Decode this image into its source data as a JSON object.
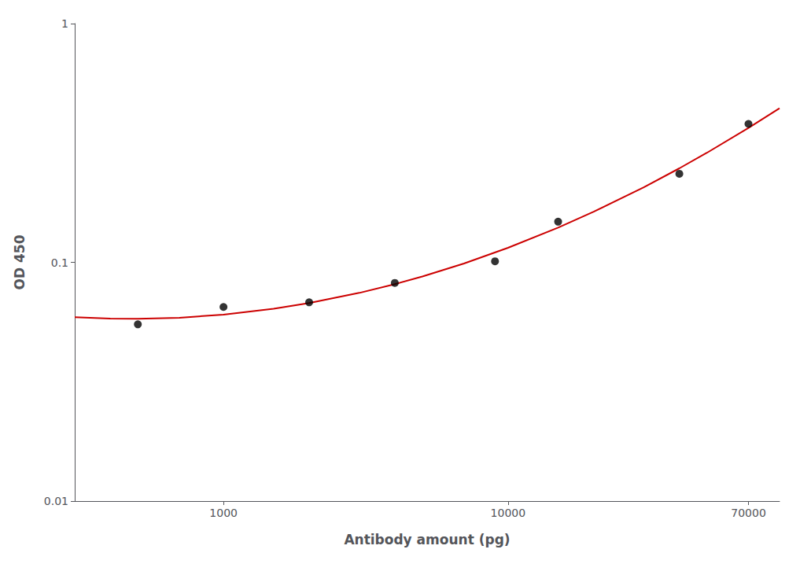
{
  "chart_data": {
    "type": "scatter",
    "xlabel": "Antibody amount (pg)",
    "ylabel": "OD 450",
    "log": true,
    "grid": false,
    "xlim": [
      300,
      90000
    ],
    "ylim": [
      0.01,
      1.0
    ],
    "xticks": [
      1000,
      10000,
      70000
    ],
    "yticks": [
      0.01,
      0.1,
      1
    ],
    "series": [
      {
        "type": "line",
        "color": "#cc0000",
        "marker": "none",
        "x": [
          300,
          400,
          500,
          700,
          1000,
          1500,
          2000,
          3000,
          4000,
          5000,
          7000,
          10000,
          15000,
          20000,
          30000,
          40000,
          50000,
          70000,
          90000
        ],
        "values": [
          0.0589,
          0.0581,
          0.05798,
          0.05861,
          0.06038,
          0.0639,
          0.0675,
          0.07447,
          0.08103,
          0.08725,
          0.0989,
          0.11505,
          0.13978,
          0.16288,
          0.2063,
          0.24759,
          0.28764,
          0.36567,
          0.44227
        ]
      },
      {
        "type": "scatter",
        "color": "#000000",
        "marker": "circle",
        "x": [
          500,
          1000,
          2000,
          4000,
          9000,
          15000,
          40000,
          70000
        ],
        "values": [
          0.055,
          0.065,
          0.068,
          0.082,
          0.101,
          0.148,
          0.235,
          0.38
        ]
      }
    ]
  }
}
